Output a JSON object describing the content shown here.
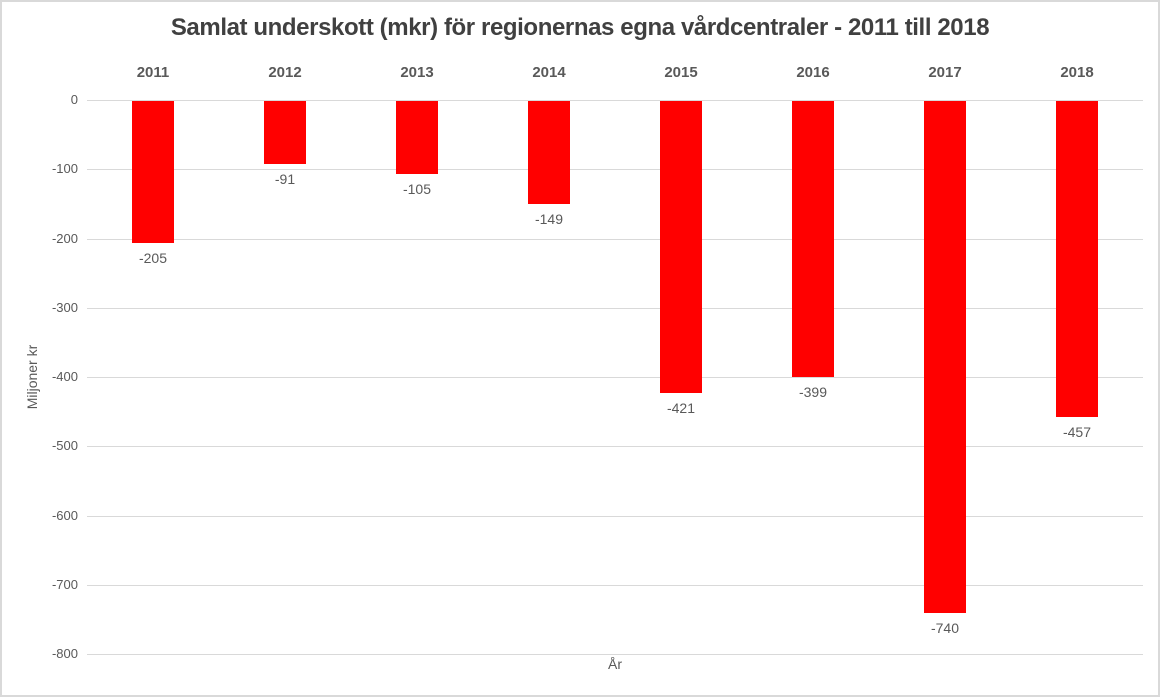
{
  "chart_data": {
    "type": "bar",
    "title": "Samlat underskott (mkr) för regionernas egna vårdcentraler - 2011 till 2018",
    "categories": [
      "2011",
      "2012",
      "2013",
      "2014",
      "2015",
      "2016",
      "2017",
      "2018"
    ],
    "values": [
      -205,
      -91,
      -105,
      -149,
      -421,
      -399,
      -740,
      -457
    ],
    "data_labels": [
      "-205",
      "-91",
      "-105",
      "-149",
      "-421",
      "-399",
      "-740",
      "-457"
    ],
    "xlabel": "År",
    "ylabel": "Miljoner kr",
    "ylim": [
      -800,
      0
    ],
    "yticks": [
      0,
      -100,
      -200,
      -300,
      -400,
      -500,
      -600,
      -700,
      -800
    ],
    "grid": true,
    "legend_position": "none",
    "series_name": "Samlat underskott (mkr)",
    "colors": {
      "bar": "#ff0000",
      "gridline": "#d9d9d9",
      "title_text": "#404040",
      "axis_text": "#595959",
      "background": "#ffffff",
      "frame_border": "#d9d9d9"
    }
  }
}
